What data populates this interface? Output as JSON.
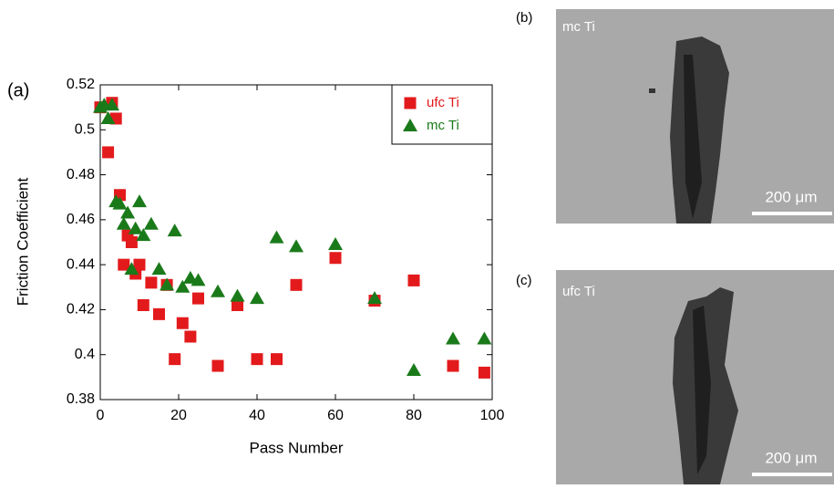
{
  "chart_data": {
    "type": "scatter",
    "panel_label": "(a)",
    "x_label": "Pass Number",
    "y_label": "Friction Coefficient",
    "xlim": [
      0,
      100
    ],
    "xticks": [
      0,
      20,
      40,
      60,
      80,
      100
    ],
    "ylim": [
      0.38,
      0.52
    ],
    "yticks": [
      0.38,
      0.4,
      0.42,
      0.44,
      0.46,
      0.48,
      0.5,
      0.52
    ],
    "legend": "upper right",
    "series": [
      {
        "name": "ufc Ti",
        "color": "#e31a1c",
        "marker": "square",
        "x": [
          0,
          2,
          3,
          4,
          5,
          6,
          7,
          8,
          9,
          10,
          11,
          13,
          15,
          17,
          19,
          21,
          23,
          25,
          30,
          35,
          40,
          45,
          50,
          60,
          70,
          80,
          90,
          98
        ],
        "values": [
          0.51,
          0.49,
          0.512,
          0.505,
          0.471,
          0.44,
          0.453,
          0.45,
          0.436,
          0.44,
          0.422,
          0.432,
          0.418,
          0.431,
          0.398,
          0.414,
          0.408,
          0.425,
          0.395,
          0.422,
          0.398,
          0.398,
          0.431,
          0.443,
          0.424,
          0.433,
          0.395,
          0.392
        ]
      },
      {
        "name": "mc Ti",
        "color": "#1a7a1a",
        "marker": "triangle",
        "x": [
          0,
          1,
          2,
          3,
          4,
          5,
          6,
          7,
          8,
          9,
          10,
          11,
          13,
          15,
          17,
          19,
          21,
          23,
          25,
          30,
          35,
          40,
          45,
          50,
          60,
          70,
          80,
          90,
          98
        ],
        "values": [
          0.51,
          0.511,
          0.505,
          0.511,
          0.468,
          0.467,
          0.458,
          0.463,
          0.438,
          0.456,
          0.468,
          0.453,
          0.458,
          0.438,
          0.431,
          0.455,
          0.43,
          0.434,
          0.433,
          0.428,
          0.426,
          0.425,
          0.452,
          0.448,
          0.449,
          0.425,
          0.393,
          0.407,
          0.407
        ]
      }
    ]
  },
  "micrographs": [
    {
      "panel_label": "(b)",
      "label": "mc Ti",
      "scale_bar": "200 μm"
    },
    {
      "panel_label": "(c)",
      "label": "ufc Ti",
      "scale_bar": "200 μm"
    }
  ]
}
